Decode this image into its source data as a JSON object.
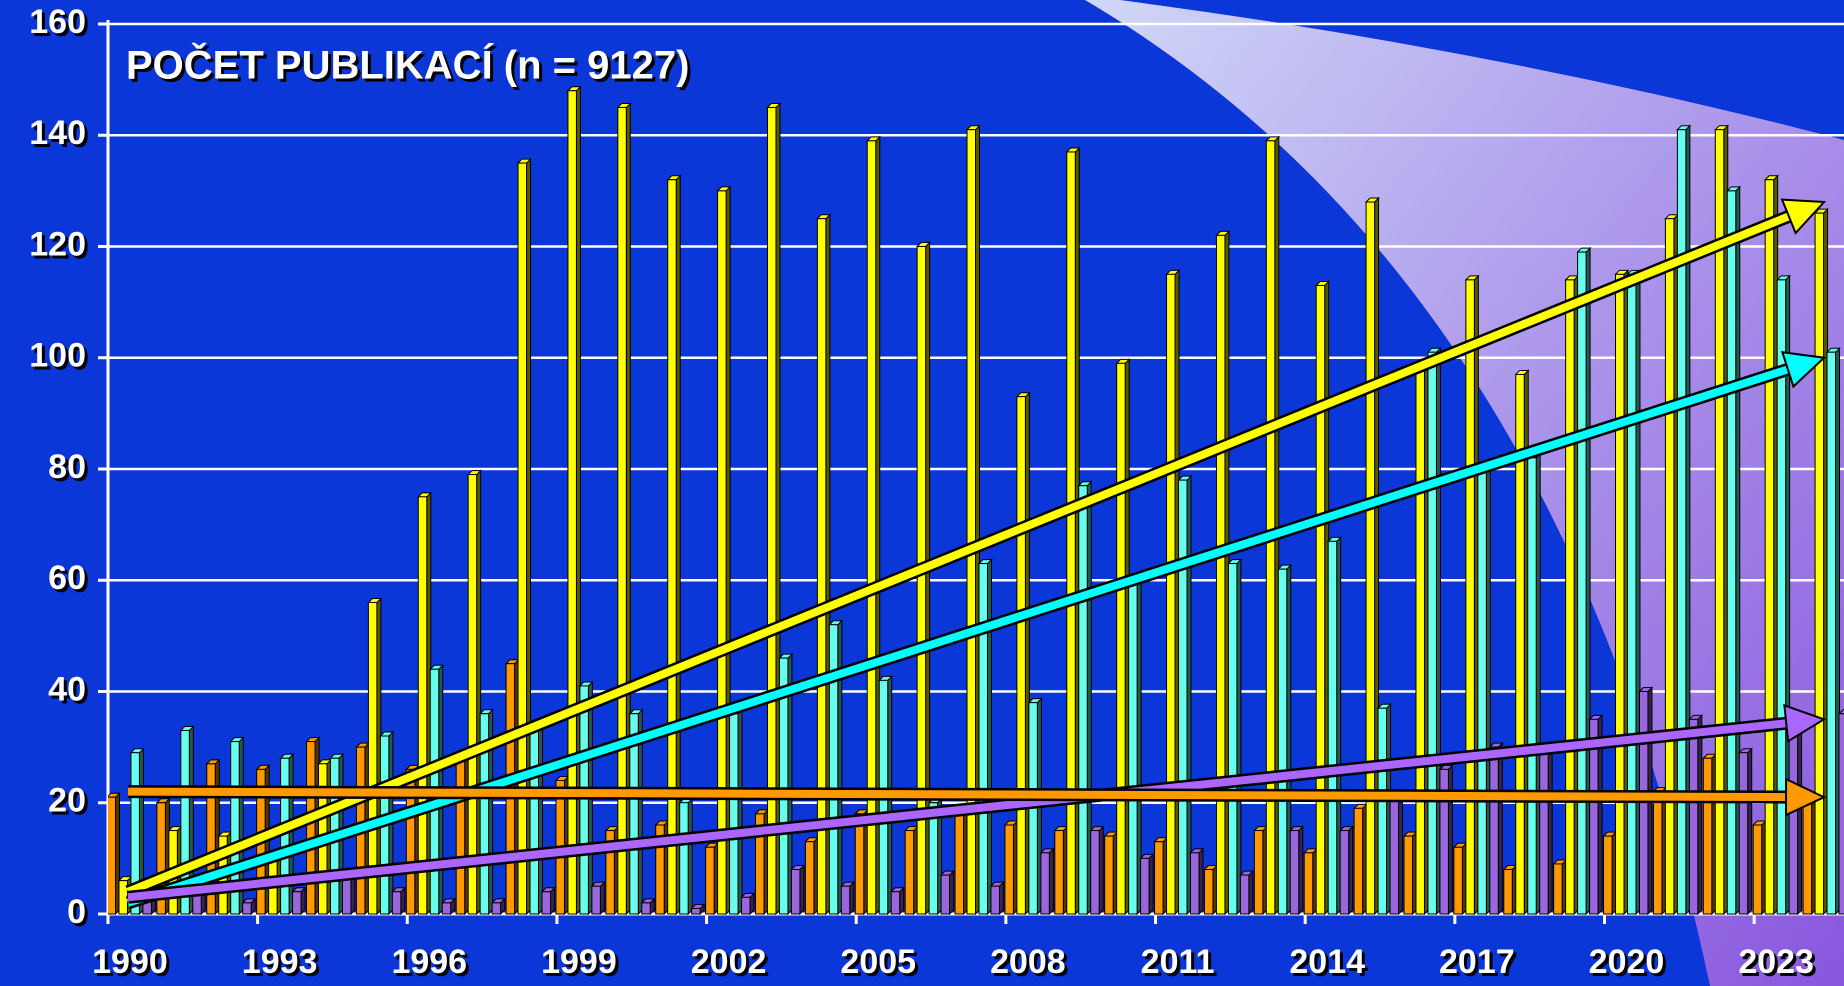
{
  "chart_data": {
    "type": "bar",
    "title": "POČET PUBLIKACÍ (n = 9127)",
    "x": [
      1990,
      1991,
      1992,
      1993,
      1994,
      1995,
      1996,
      1997,
      1998,
      1999,
      2000,
      2001,
      2002,
      2003,
      2004,
      2005,
      2006,
      2007,
      2008,
      2009,
      2010,
      2011,
      2012,
      2013,
      2014,
      2015,
      2016,
      2017,
      2018,
      2019,
      2020,
      2021,
      2022,
      2023,
      2024
    ],
    "xlim": [
      1989.6,
      2024.4
    ],
    "xticks": [
      1990,
      1993,
      1996,
      1999,
      2002,
      2005,
      2008,
      2011,
      2014,
      2017,
      2020,
      2023
    ],
    "ylim": [
      0,
      160
    ],
    "yticks": [
      0,
      20,
      40,
      60,
      80,
      100,
      120,
      140,
      160
    ],
    "grid": true,
    "series": [
      {
        "color": "#ff9900",
        "values": [
          21,
          20,
          27,
          26,
          31,
          30,
          26,
          28,
          45,
          24,
          15,
          16,
          12,
          18,
          13,
          18,
          15,
          19,
          16,
          15,
          14,
          13,
          8,
          15,
          11,
          19,
          14,
          12,
          8,
          9,
          14,
          22,
          28,
          16,
          21
        ]
      },
      {
        "color": "#ffff00",
        "values": [
          6,
          15,
          14,
          10,
          27,
          56,
          75,
          79,
          135,
          148,
          145,
          132,
          130,
          145,
          125,
          139,
          120,
          141,
          93,
          137,
          99,
          115,
          122,
          139,
          113,
          128,
          98,
          114,
          97,
          114,
          115,
          125,
          141,
          132,
          126
        ]
      },
      {
        "color": "#66ffee",
        "values": [
          29,
          33,
          31,
          28,
          28,
          32,
          44,
          36,
          33,
          41,
          36,
          20,
          36,
          46,
          52,
          42,
          20,
          63,
          38,
          77,
          60,
          78,
          63,
          62,
          67,
          37,
          101,
          80,
          82,
          119,
          115,
          141,
          130,
          114,
          101
        ]
      },
      {
        "color": "#9966dd",
        "values": [
          3,
          4,
          2,
          4,
          7,
          4,
          2,
          2,
          4,
          5,
          2,
          1,
          3,
          8,
          5,
          4,
          7,
          5,
          11,
          15,
          10,
          11,
          7,
          15,
          15,
          21,
          26,
          30,
          29,
          35,
          40,
          35,
          29,
          33,
          36
        ]
      }
    ],
    "trend_lines": [
      {
        "color": "#ffff00",
        "start": [
          1990,
          4
        ],
        "end": [
          2024,
          128
        ]
      },
      {
        "color": "#00ffff",
        "start": [
          1990,
          2
        ],
        "end": [
          2024,
          100
        ]
      },
      {
        "color": "#aa66ff",
        "start": [
          1990,
          3
        ],
        "end": [
          2024,
          35
        ]
      },
      {
        "color": "#ff9900",
        "start": [
          1990,
          22
        ],
        "end": [
          2024,
          21
        ]
      }
    ]
  }
}
